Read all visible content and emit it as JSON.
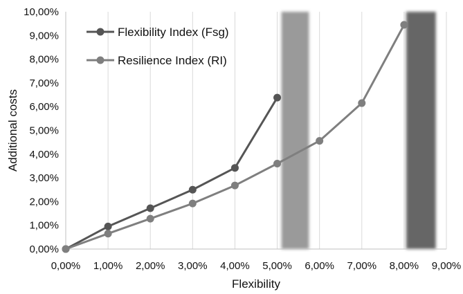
{
  "chart_data": {
    "type": "line",
    "xlabel": "Flexibility",
    "ylabel": "Additional costs",
    "xlim": [
      0,
      9
    ],
    "ylim": [
      0,
      10
    ],
    "x_ticks": [
      "0,00%",
      "1,00%",
      "2,00%",
      "3,00%",
      "4,00%",
      "5,00%",
      "6,00%",
      "7,00%",
      "8,00%",
      "9,00%"
    ],
    "y_ticks": [
      "0,00%",
      "1,00%",
      "2,00%",
      "3,00%",
      "4,00%",
      "5,00%",
      "6,00%",
      "7,00%",
      "8,00%",
      "9,00%",
      "10,00%"
    ],
    "grid": "vertical",
    "legend_position": "top-left",
    "series": [
      {
        "name": "Flexibility Index (Fsg)",
        "color": "#555555",
        "x": [
          0,
          1,
          2,
          3,
          4,
          5
        ],
        "values": [
          0.0,
          0.95,
          1.72,
          2.5,
          3.42,
          6.38
        ]
      },
      {
        "name": "Resilience Index (RI)",
        "color": "#7f7f7f",
        "x": [
          0,
          1,
          2,
          3,
          4,
          5,
          6,
          7,
          8
        ],
        "values": [
          0.0,
          0.65,
          1.28,
          1.92,
          2.68,
          3.6,
          4.56,
          6.15,
          9.45
        ]
      }
    ],
    "bands": [
      {
        "x_range": [
          5.1,
          5.75
        ],
        "color": "#9a9a9a"
      },
      {
        "x_range": [
          8.05,
          8.75
        ],
        "color": "#666666"
      }
    ]
  }
}
